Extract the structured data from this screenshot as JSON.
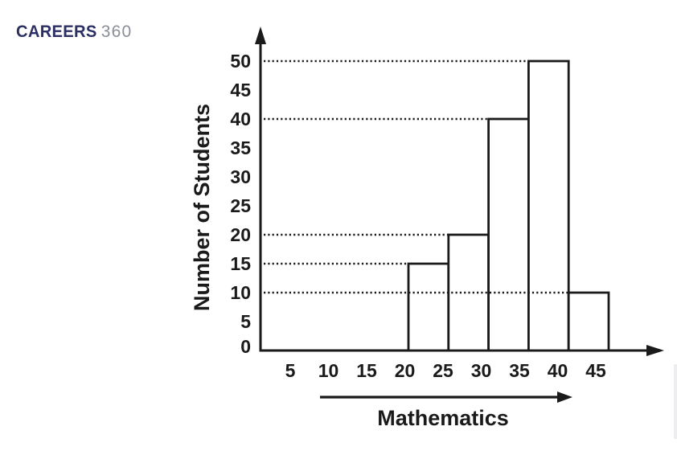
{
  "logo": {
    "brand": "CAREERS",
    "suffix": "360",
    "brand_color": "#2B2F63",
    "suffix_color": "#8A8E97"
  },
  "chart_data": {
    "type": "bar",
    "subtype": "histogram",
    "title": "",
    "xlabel": "Mathematics",
    "ylabel": "Number of Students",
    "x_ticks": [
      5,
      10,
      15,
      20,
      25,
      30,
      35,
      40,
      45
    ],
    "y_ticks": [
      0,
      5,
      10,
      15,
      20,
      25,
      30,
      35,
      40,
      45,
      50
    ],
    "xlim": [
      0,
      50
    ],
    "ylim": [
      0,
      55
    ],
    "bins": [
      {
        "x0": 20,
        "x1": 25,
        "value": 15
      },
      {
        "x0": 25,
        "x1": 30,
        "value": 20
      },
      {
        "x0": 30,
        "x1": 35,
        "value": 40
      },
      {
        "x0": 35,
        "x1": 40,
        "value": 50
      },
      {
        "x0": 40,
        "x1": 45,
        "value": 10
      }
    ],
    "gridlines": [
      10,
      15,
      20,
      40,
      50
    ],
    "grid_style": "dotted",
    "legend": "none",
    "bar_fill": "#ffffff",
    "line_color": "#1a1a1a",
    "text_color": "#1a1a1a"
  }
}
